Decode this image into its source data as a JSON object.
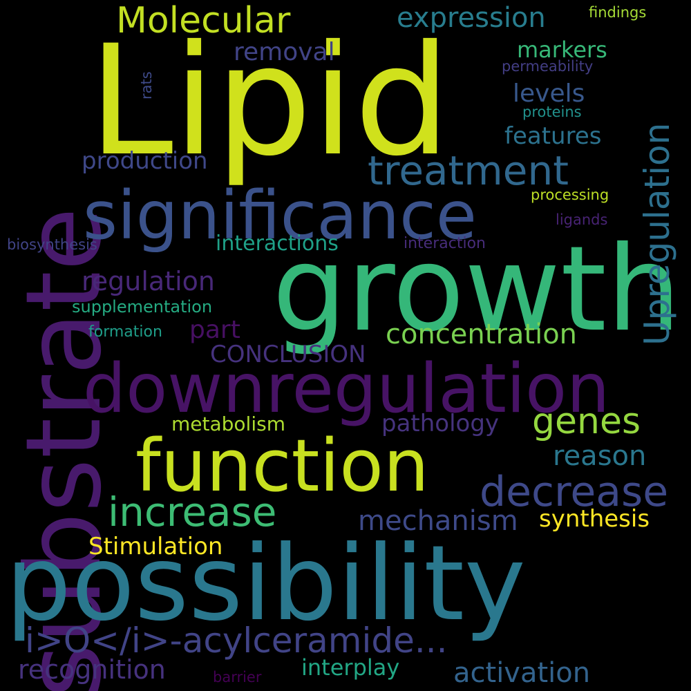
{
  "words": [
    {
      "text": "Lipid",
      "color": "#d0e11c"
    },
    {
      "text": "growth",
      "color": "#35b779"
    },
    {
      "text": "substrate",
      "color": "#481a6c"
    },
    {
      "text": "possibility",
      "color": "#2a788e"
    },
    {
      "text": "significance",
      "color": "#3b528b"
    },
    {
      "text": "downregulation",
      "color": "#471365"
    },
    {
      "text": "function",
      "color": "#c8e020"
    },
    {
      "text": "treatment",
      "color": "#31688e"
    },
    {
      "text": "Upregulation",
      "color": "#2d708e"
    },
    {
      "text": "Molecular",
      "color": "#c2df23"
    },
    {
      "text": "expression",
      "color": "#287d8e"
    },
    {
      "text": "removal",
      "color": "#414487"
    },
    {
      "text": "markers",
      "color": "#37b878"
    },
    {
      "text": "levels",
      "color": "#38588c"
    },
    {
      "text": "features",
      "color": "#2c728e"
    },
    {
      "text": "production",
      "color": "#3f4889"
    },
    {
      "text": "findings",
      "color": "#a5db36"
    },
    {
      "text": "permeability",
      "color": "#433e85"
    },
    {
      "text": "proteins",
      "color": "#21918c"
    },
    {
      "text": "rats",
      "color": "#3e4a89"
    },
    {
      "text": "processing",
      "color": "#bddf26"
    },
    {
      "text": "ligands",
      "color": "#482374"
    },
    {
      "text": "biosynthesis",
      "color": "#414487"
    },
    {
      "text": "interactions",
      "color": "#1fa188"
    },
    {
      "text": "interaction",
      "color": "#472c7a"
    },
    {
      "text": "regulation",
      "color": "#482878"
    },
    {
      "text": "supplementation",
      "color": "#25ab82"
    },
    {
      "text": "formation",
      "color": "#1f9e89"
    },
    {
      "text": "part",
      "color": "#471063"
    },
    {
      "text": "CONCLUSION",
      "color": "#46327e"
    },
    {
      "text": "concentration",
      "color": "#7ad151"
    },
    {
      "text": "genes",
      "color": "#95d840"
    },
    {
      "text": "metabolism",
      "color": "#addc30"
    },
    {
      "text": "pathology",
      "color": "#46337e"
    },
    {
      "text": "reason",
      "color": "#2a778e"
    },
    {
      "text": "decrease",
      "color": "#3e4989"
    },
    {
      "text": "increase",
      "color": "#3dbc74"
    },
    {
      "text": "mechanism",
      "color": "#3e4a89"
    },
    {
      "text": "synthesis",
      "color": "#fde725"
    },
    {
      "text": "Stimulation",
      "color": "#fde725"
    },
    {
      "text": "i>O</i>-acylceramide...",
      "color": "#414487"
    },
    {
      "text": "recognition",
      "color": "#46327e"
    },
    {
      "text": "interplay",
      "color": "#22a785"
    },
    {
      "text": "activation",
      "color": "#33638d"
    },
    {
      "text": "barrier",
      "color": "#440154"
    }
  ]
}
